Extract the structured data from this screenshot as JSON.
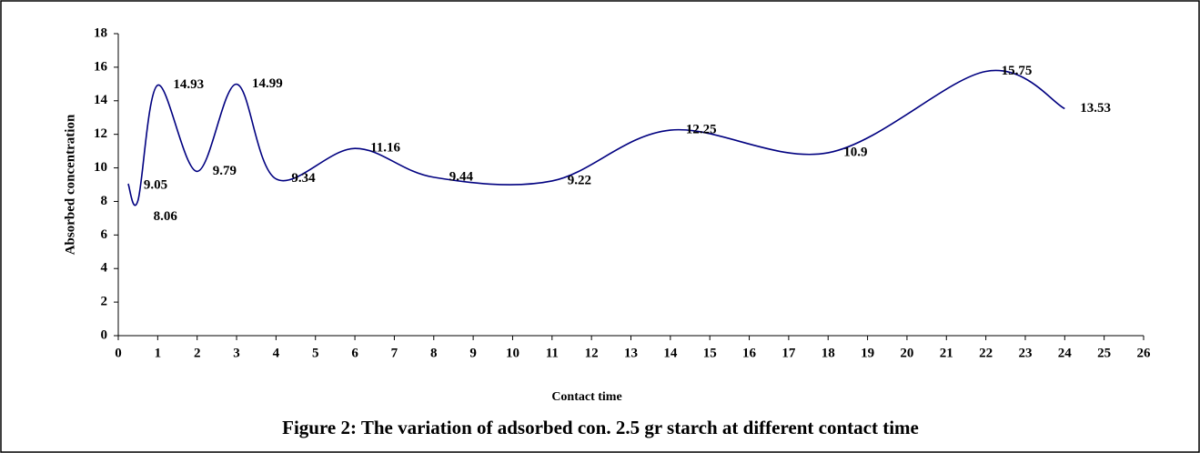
{
  "chart_data": {
    "type": "line",
    "caption": "Figure 2: The variation of adsorbed con. 2.5 gr starch at different contact time",
    "xlabel": "Contact time",
    "ylabel": "Absorbed concentration",
    "x": [
      0.25,
      0.5,
      1,
      2,
      3,
      4,
      6,
      8,
      11,
      14,
      18,
      22,
      24
    ],
    "series": [
      {
        "color": "#000080",
        "values": [
          9.05,
          8.06,
          14.93,
          9.79,
          14.99,
          9.34,
          11.16,
          9.44,
          9.22,
          12.25,
          10.9,
          15.75,
          13.53
        ]
      }
    ],
    "xlim": [
      0,
      26
    ],
    "xticks": [
      0,
      1,
      2,
      3,
      4,
      5,
      6,
      7,
      8,
      9,
      10,
      11,
      12,
      13,
      14,
      15,
      16,
      17,
      18,
      19,
      20,
      21,
      22,
      23,
      24,
      25,
      26
    ],
    "ylim": [
      0,
      18
    ],
    "yticks": [
      0,
      2,
      4,
      6,
      8,
      10,
      12,
      14,
      16,
      18
    ],
    "grid": false
  }
}
